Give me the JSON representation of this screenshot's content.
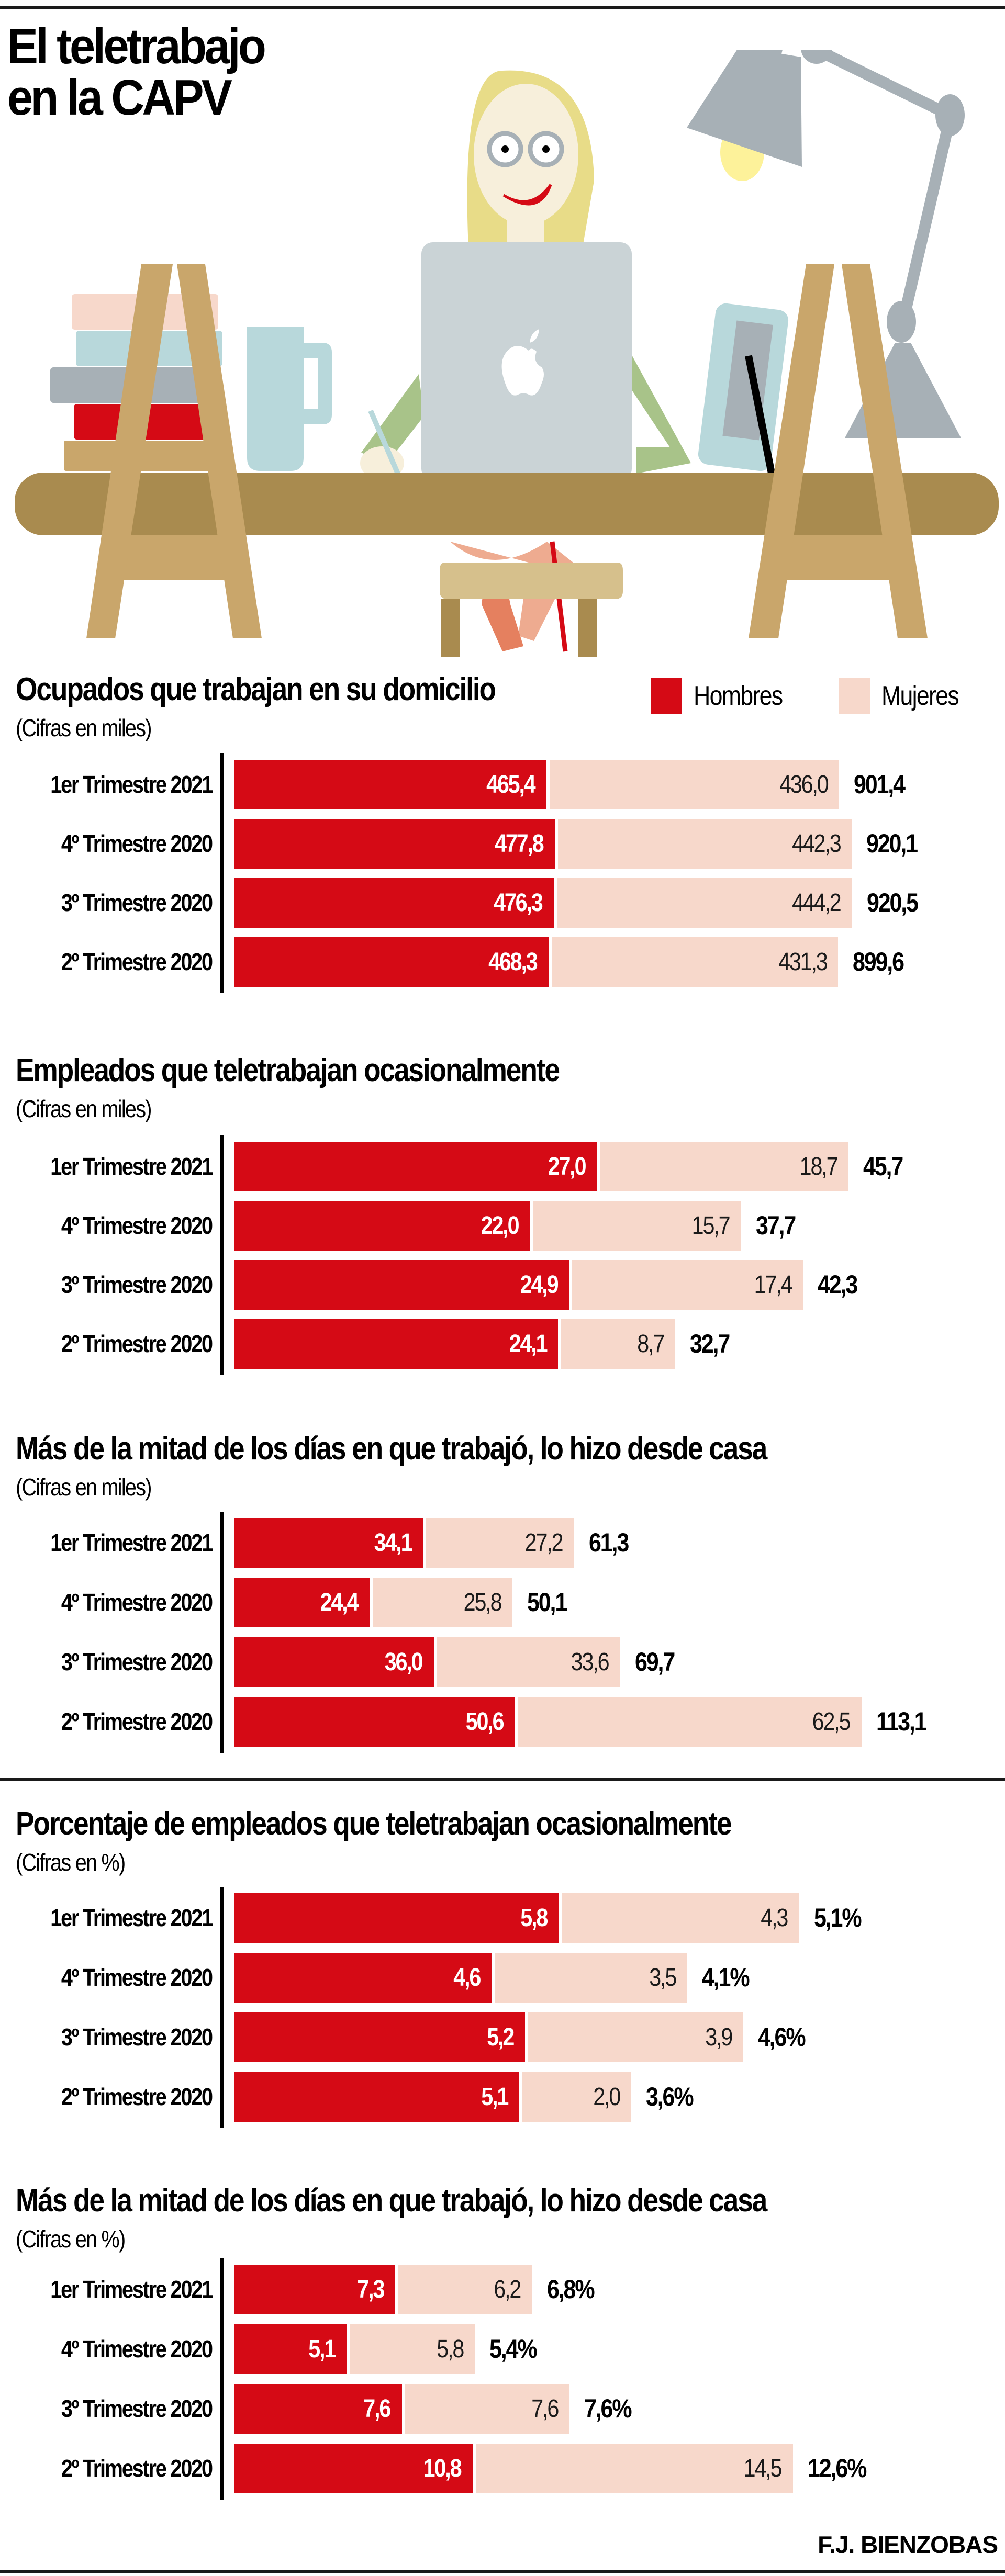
{
  "header": {
    "title_line1": "El teletrabajo",
    "title_line2": "en la CAPV"
  },
  "legend": {
    "hombres": "Hombres",
    "mujeres": "Mujeres"
  },
  "colors": {
    "hombres": "#d50a15",
    "mujeres": "#f7d8cb",
    "text": "#000000"
  },
  "illustration": {
    "description": "woman working on a laptop at a desk with books, mug, tablet and desk lamp",
    "icons": [
      "laptop-icon",
      "apple-logo-icon",
      "books-icon",
      "mug-icon",
      "tablet-icon",
      "desk-lamp-icon",
      "desk-icon",
      "chair-icon",
      "woman-icon"
    ]
  },
  "credit": "F.J. BIENZOBAS",
  "chart_data": [
    {
      "type": "bar",
      "stacked": true,
      "orientation": "horizontal",
      "title": "Ocupados que trabajan en su domicilio",
      "subtitle": "(Cifras en miles)",
      "categories": [
        "1er Trimestre 2021",
        "4º Trimestre 2020",
        "3º Trimestre 2020",
        "2º Trimestre 2020"
      ],
      "series": [
        {
          "name": "Hombres",
          "values": [
            465.4,
            477.8,
            476.3,
            468.3
          ],
          "labels": [
            "465,4",
            "477,8",
            "476,3",
            "468,3"
          ]
        },
        {
          "name": "Mujeres",
          "values": [
            436.0,
            442.3,
            444.2,
            431.3
          ],
          "labels": [
            "436,0",
            "442,3",
            "444,2",
            "431,3"
          ]
        }
      ],
      "totals": [
        901.4,
        920.1,
        920.5,
        899.6
      ],
      "total_labels": [
        "901,4",
        "920,1",
        "920,5",
        "899,6"
      ],
      "legend": "top-right",
      "grid": false
    },
    {
      "type": "bar",
      "stacked": true,
      "orientation": "horizontal",
      "title": "Empleados que teletrabajan ocasionalmente",
      "subtitle": "(Cifras en miles)",
      "categories": [
        "1er Trimestre 2021",
        "4º Trimestre 2020",
        "3º Trimestre 2020",
        "2º Trimestre 2020"
      ],
      "series": [
        {
          "name": "Hombres",
          "values": [
            27.0,
            22.0,
            24.9,
            24.1
          ],
          "labels": [
            "27,0",
            "22,0",
            "24,9",
            "24,1"
          ]
        },
        {
          "name": "Mujeres",
          "values": [
            18.7,
            15.7,
            17.4,
            8.7
          ],
          "labels": [
            "18,7",
            "15,7",
            "17,4",
            "8,7"
          ]
        }
      ],
      "totals": [
        45.7,
        37.7,
        42.3,
        32.7
      ],
      "total_labels": [
        "45,7",
        "37,7",
        "42,3",
        "32,7"
      ],
      "grid": false
    },
    {
      "type": "bar",
      "stacked": true,
      "orientation": "horizontal",
      "title": "Más de la mitad de los días en que trabajó, lo hizo desde casa",
      "subtitle": "(Cifras en miles)",
      "categories": [
        "1er Trimestre 2021",
        "4º Trimestre 2020",
        "3º Trimestre 2020",
        "2º Trimestre 2020"
      ],
      "series": [
        {
          "name": "Hombres",
          "values": [
            34.1,
            24.4,
            36.0,
            50.6
          ],
          "labels": [
            "34,1",
            "24,4",
            "36,0",
            "50,6"
          ]
        },
        {
          "name": "Mujeres",
          "values": [
            27.2,
            25.8,
            33.6,
            62.5
          ],
          "labels": [
            "27,2",
            "25,8",
            "33,6",
            "62,5"
          ]
        }
      ],
      "totals": [
        61.3,
        50.1,
        69.7,
        113.1
      ],
      "total_labels": [
        "61,3",
        "50,1",
        "69,7",
        "113,1"
      ],
      "grid": false
    },
    {
      "type": "bar",
      "stacked": true,
      "orientation": "horizontal",
      "title": "Porcentaje de empleados que teletrabajan ocasionalmente",
      "subtitle": "(Cifras en %)",
      "categories": [
        "1er Trimestre 2021",
        "4º Trimestre 2020",
        "3º Trimestre 2020",
        "2º Trimestre 2020"
      ],
      "series": [
        {
          "name": "Hombres",
          "values": [
            5.8,
            4.6,
            5.2,
            5.1
          ],
          "labels": [
            "5,8",
            "4,6",
            "5,2",
            "5,1"
          ]
        },
        {
          "name": "Mujeres",
          "values": [
            4.3,
            3.5,
            3.9,
            2.0
          ],
          "labels": [
            "4,3",
            "3,5",
            "3,9",
            "2,0"
          ]
        }
      ],
      "totals": [
        5.1,
        4.1,
        4.6,
        3.6
      ],
      "total_labels": [
        "5,1%",
        "4,1%",
        "4,6%",
        "3,6%"
      ],
      "grid": false
    },
    {
      "type": "bar",
      "stacked": true,
      "orientation": "horizontal",
      "title": "Más de la mitad de los días en que trabajó, lo hizo desde casa",
      "subtitle": "(Cifras en %)",
      "categories": [
        "1er Trimestre 2021",
        "4º Trimestre 2020",
        "3º Trimestre 2020",
        "2º Trimestre 2020"
      ],
      "series": [
        {
          "name": "Hombres",
          "values": [
            7.3,
            5.1,
            7.6,
            10.8
          ],
          "labels": [
            "7,3",
            "5,1",
            "7,6",
            "10,8"
          ]
        },
        {
          "name": "Mujeres",
          "values": [
            6.2,
            5.8,
            7.6,
            14.5
          ],
          "labels": [
            "6,2",
            "5,8",
            "7,6",
            "14,5"
          ]
        }
      ],
      "totals": [
        6.8,
        5.4,
        7.6,
        12.6
      ],
      "total_labels": [
        "6,8%",
        "5,4%",
        "7,6%",
        "12,6%"
      ],
      "grid": false
    }
  ]
}
